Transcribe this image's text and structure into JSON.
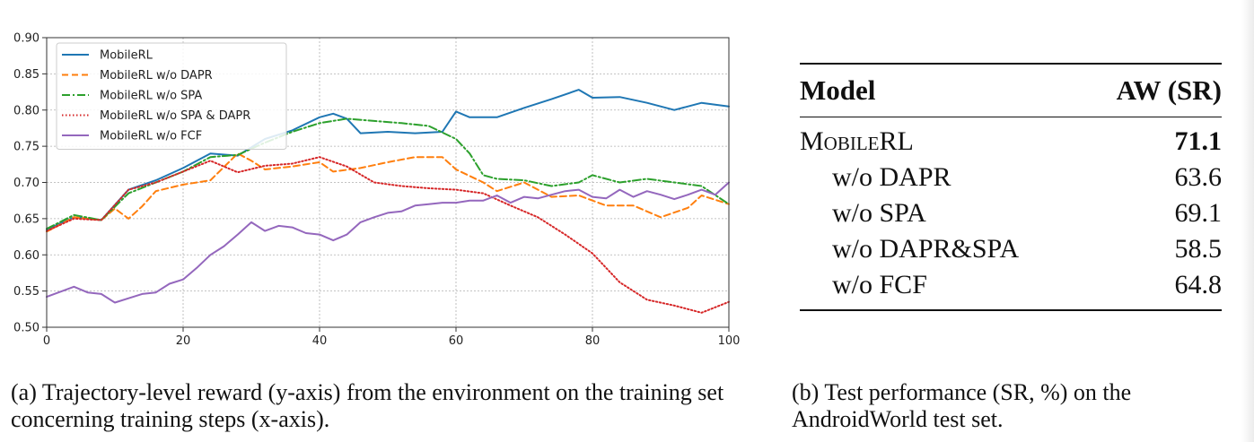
{
  "chart_data": {
    "type": "line",
    "xlim": [
      0,
      100
    ],
    "ylim": [
      0.5,
      0.9
    ],
    "x_ticks": [
      0,
      20,
      40,
      60,
      80,
      100
    ],
    "x_tick_labels": [
      "0",
      "20",
      "40",
      "60",
      "80",
      "100"
    ],
    "y_ticks": [
      0.5,
      0.55,
      0.6,
      0.65,
      0.7,
      0.75,
      0.8,
      0.85,
      0.9
    ],
    "y_tick_labels": [
      "0.50",
      "0.55",
      "0.60",
      "0.65",
      "0.70",
      "0.75",
      "0.80",
      "0.85",
      "0.90"
    ],
    "grid": true,
    "legend_position": "top-left",
    "series": [
      {
        "name": "MobileRL",
        "color": "#1f77b4",
        "style": "solid",
        "x": [
          0,
          4,
          8,
          12,
          16,
          20,
          24,
          28,
          32,
          36,
          40,
          42,
          44,
          46,
          50,
          54,
          58,
          60,
          62,
          66,
          70,
          74,
          78,
          80,
          84,
          88,
          92,
          96,
          100
        ],
        "y": [
          0.635,
          0.652,
          0.648,
          0.69,
          0.703,
          0.72,
          0.74,
          0.737,
          0.76,
          0.772,
          0.79,
          0.795,
          0.788,
          0.768,
          0.77,
          0.768,
          0.77,
          0.798,
          0.79,
          0.79,
          0.803,
          0.815,
          0.828,
          0.817,
          0.818,
          0.81,
          0.8,
          0.81,
          0.805
        ]
      },
      {
        "name": "MobileRL w/o DAPR",
        "color": "#ff7f0e",
        "style": "dashed",
        "x": [
          0,
          4,
          8,
          10,
          12,
          14,
          16,
          20,
          24,
          28,
          30,
          32,
          36,
          40,
          42,
          46,
          50,
          54,
          58,
          60,
          64,
          66,
          70,
          74,
          78,
          82,
          86,
          90,
          94,
          96,
          100
        ],
        "y": [
          0.632,
          0.652,
          0.648,
          0.664,
          0.65,
          0.667,
          0.688,
          0.697,
          0.703,
          0.74,
          0.73,
          0.718,
          0.722,
          0.728,
          0.715,
          0.72,
          0.728,
          0.735,
          0.735,
          0.718,
          0.7,
          0.688,
          0.7,
          0.68,
          0.682,
          0.668,
          0.668,
          0.652,
          0.665,
          0.682,
          0.67
        ]
      },
      {
        "name": "MobileRL w/o SPA",
        "color": "#2ca02c",
        "style": "dashdot",
        "x": [
          0,
          4,
          8,
          12,
          16,
          20,
          24,
          28,
          32,
          36,
          40,
          44,
          48,
          52,
          56,
          60,
          62,
          64,
          66,
          70,
          74,
          78,
          80,
          84,
          88,
          92,
          96,
          100
        ],
        "y": [
          0.636,
          0.655,
          0.648,
          0.685,
          0.7,
          0.715,
          0.735,
          0.738,
          0.755,
          0.77,
          0.782,
          0.788,
          0.785,
          0.782,
          0.778,
          0.76,
          0.74,
          0.71,
          0.705,
          0.703,
          0.695,
          0.7,
          0.71,
          0.7,
          0.705,
          0.7,
          0.695,
          0.67
        ]
      },
      {
        "name": "MobileRL w/o SPA & DAPR",
        "color": "#d62728",
        "style": "dotted",
        "x": [
          0,
          4,
          8,
          12,
          16,
          20,
          24,
          28,
          32,
          36,
          40,
          44,
          48,
          52,
          56,
          60,
          64,
          68,
          72,
          76,
          80,
          84,
          88,
          92,
          96,
          100
        ],
        "y": [
          0.633,
          0.65,
          0.648,
          0.69,
          0.7,
          0.715,
          0.73,
          0.714,
          0.723,
          0.726,
          0.735,
          0.722,
          0.7,
          0.695,
          0.692,
          0.69,
          0.685,
          0.668,
          0.652,
          0.628,
          0.602,
          0.562,
          0.538,
          0.53,
          0.52,
          0.535
        ]
      },
      {
        "name": "MobileRL w/o FCF",
        "color": "#9467bd",
        "style": "solid",
        "x": [
          0,
          4,
          6,
          8,
          10,
          12,
          14,
          16,
          18,
          20,
          22,
          24,
          26,
          28,
          30,
          32,
          34,
          36,
          38,
          40,
          42,
          44,
          46,
          48,
          50,
          52,
          54,
          56,
          58,
          60,
          62,
          64,
          66,
          68,
          70,
          72,
          74,
          76,
          78,
          80,
          82,
          84,
          86,
          88,
          90,
          92,
          94,
          96,
          98,
          100
        ],
        "y": [
          0.542,
          0.556,
          0.548,
          0.546,
          0.534,
          0.54,
          0.546,
          0.548,
          0.56,
          0.566,
          0.582,
          0.6,
          0.612,
          0.628,
          0.645,
          0.633,
          0.64,
          0.638,
          0.63,
          0.628,
          0.62,
          0.628,
          0.645,
          0.652,
          0.658,
          0.66,
          0.668,
          0.67,
          0.672,
          0.672,
          0.675,
          0.675,
          0.682,
          0.672,
          0.68,
          0.678,
          0.683,
          0.688,
          0.69,
          0.68,
          0.678,
          0.69,
          0.68,
          0.688,
          0.683,
          0.677,
          0.683,
          0.69,
          0.683,
          0.7
        ]
      }
    ]
  },
  "captions": {
    "a": "(a) Trajectory-level reward (y-axis) from the environment on the training set concerning training steps (x-axis).",
    "b": "(b) Test performance (SR, %) on the AndroidWorld test set."
  },
  "table": {
    "header_model": "Model",
    "header_metric": "AW (SR)",
    "rows": [
      {
        "model": "MobileRL",
        "value": "71.1"
      },
      {
        "model": "w/o DAPR",
        "value": "63.6"
      },
      {
        "model": "w/o SPA",
        "value": "69.1"
      },
      {
        "model": "w/o DAPR&SPA",
        "value": "58.5"
      },
      {
        "model": "w/o FCF",
        "value": "64.8"
      }
    ]
  }
}
